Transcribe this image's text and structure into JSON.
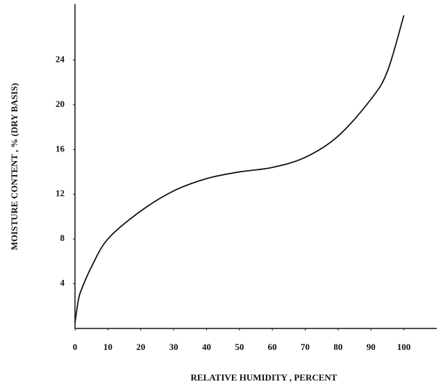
{
  "chart_data": {
    "type": "line",
    "x_label": "RELATIVE HUMIDITY , PERCENT",
    "y_label": "MOISTURE CONTENT , % (DRY BASIS)",
    "x": [
      0,
      1,
      2,
      5,
      10,
      20,
      30,
      40,
      50,
      60,
      70,
      80,
      90,
      95,
      100
    ],
    "values": [
      0.5,
      2.5,
      3.5,
      5.5,
      8,
      10.5,
      12.3,
      13.4,
      14,
      14.4,
      15.3,
      17.2,
      20.5,
      23,
      28
    ],
    "color": "#111111",
    "xlim": [
      0,
      110
    ],
    "xticks": [
      0,
      10,
      20,
      30,
      40,
      50,
      60,
      70,
      80,
      90,
      100
    ],
    "ylim": [
      0,
      29
    ],
    "yticks": [
      4,
      8,
      12,
      16,
      20,
      24
    ]
  }
}
